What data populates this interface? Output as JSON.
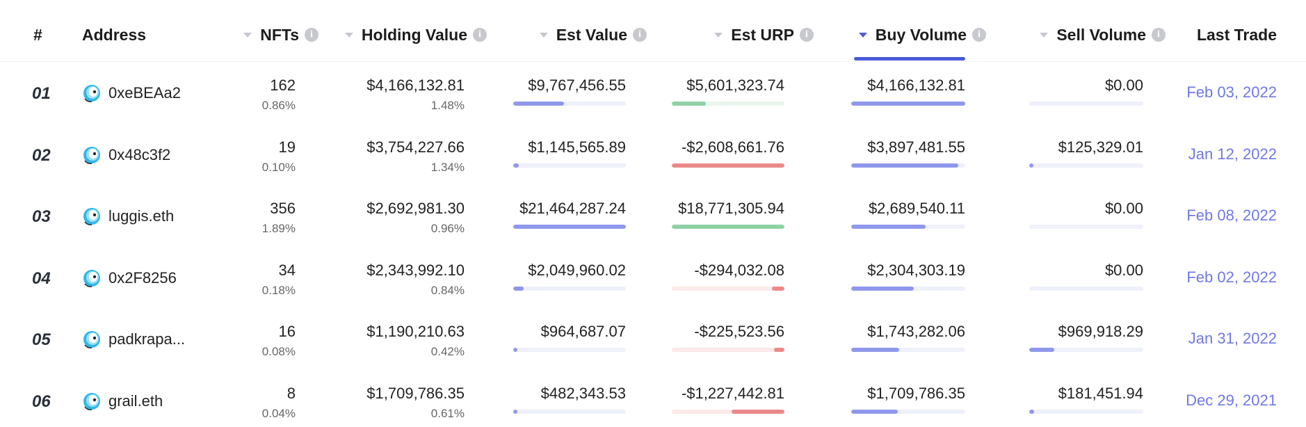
{
  "header": {
    "rank": "#",
    "address": "Address",
    "nfts": "NFTs",
    "holding_value": "Holding Value",
    "est_value": "Est Value",
    "est_urp": "Est URP",
    "buy_volume": "Buy Volume",
    "sell_volume": "Sell Volume",
    "last_trade": "Last Trade",
    "info_glyph": "i"
  },
  "colors": {
    "blue_bar": "#8f98ea",
    "blue_track": "#eef0fb",
    "green_bar": "#8fd1a6",
    "green_track": "#e9f6ee",
    "red_bar": "#ea8a88",
    "red_track": "#fde9e9",
    "date_text": "#6f78e6",
    "active_sort": "#4a5ad8"
  },
  "rows": [
    {
      "rank": "01",
      "address": "0xeBEAa2",
      "nfts": "162",
      "nfts_pct": "0.86%",
      "holding": "$4,166,132.81",
      "holding_pct": "1.48%",
      "est_value": "$9,767,456.55",
      "est_value_ratio": 0.45,
      "est_urp": "$5,601,323.74",
      "urp_ratio": 0.3,
      "urp_sign": "pos",
      "buy": "$4,166,132.81",
      "buy_ratio": 1.0,
      "sell": "$0.00",
      "sell_ratio": 0.0,
      "last_trade": "Feb 03, 2022"
    },
    {
      "rank": "02",
      "address": "0x48c3f2",
      "nfts": "19",
      "nfts_pct": "0.10%",
      "holding": "$3,754,227.66",
      "holding_pct": "1.34%",
      "est_value": "$1,145,565.89",
      "est_value_ratio": 0.05,
      "est_urp": "-$2,608,661.76",
      "urp_ratio": 1.0,
      "urp_sign": "neg",
      "buy": "$3,897,481.55",
      "buy_ratio": 0.94,
      "sell": "$125,329.01",
      "sell_ratio": 0.02,
      "last_trade": "Jan 12, 2022"
    },
    {
      "rank": "03",
      "address": "luggis.eth",
      "nfts": "356",
      "nfts_pct": "1.89%",
      "holding": "$2,692,981.30",
      "holding_pct": "0.96%",
      "est_value": "$21,464,287.24",
      "est_value_ratio": 1.0,
      "est_urp": "$18,771,305.94",
      "urp_ratio": 1.0,
      "urp_sign": "pos",
      "buy": "$2,689,540.11",
      "buy_ratio": 0.65,
      "sell": "$0.00",
      "sell_ratio": 0.0,
      "last_trade": "Feb 08, 2022"
    },
    {
      "rank": "04",
      "address": "0x2F8256",
      "nfts": "34",
      "nfts_pct": "0.18%",
      "holding": "$2,343,992.10",
      "holding_pct": "0.84%",
      "est_value": "$2,049,960.02",
      "est_value_ratio": 0.09,
      "est_urp": "-$294,032.08",
      "urp_ratio": 0.11,
      "urp_sign": "neg",
      "buy": "$2,304,303.19",
      "buy_ratio": 0.55,
      "sell": "$0.00",
      "sell_ratio": 0.0,
      "last_trade": "Feb 02, 2022"
    },
    {
      "rank": "05",
      "address": "padkrapa...",
      "nfts": "16",
      "nfts_pct": "0.08%",
      "holding": "$1,190,210.63",
      "holding_pct": "0.42%",
      "est_value": "$964,687.07",
      "est_value_ratio": 0.04,
      "est_urp": "-$225,523.56",
      "urp_ratio": 0.09,
      "urp_sign": "neg",
      "buy": "$1,743,282.06",
      "buy_ratio": 0.42,
      "sell": "$969,918.29",
      "sell_ratio": 0.22,
      "last_trade": "Jan 31, 2022"
    },
    {
      "rank": "06",
      "address": "grail.eth",
      "nfts": "8",
      "nfts_pct": "0.04%",
      "holding": "$1,709,786.35",
      "holding_pct": "0.61%",
      "est_value": "$482,343.53",
      "est_value_ratio": 0.02,
      "est_urp": "-$1,227,442.81",
      "urp_ratio": 0.47,
      "urp_sign": "neg",
      "buy": "$1,709,786.35",
      "buy_ratio": 0.41,
      "sell": "$181,451.94",
      "sell_ratio": 0.04,
      "last_trade": "Dec 29, 2021"
    }
  ]
}
